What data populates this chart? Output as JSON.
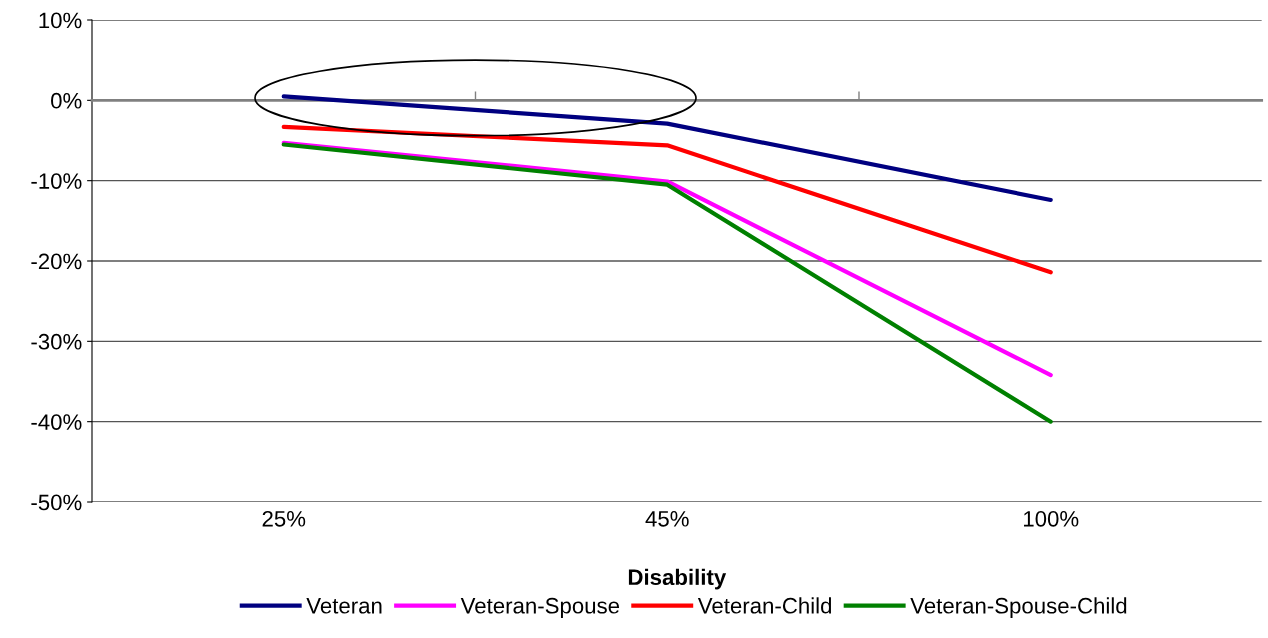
{
  "chart_data": {
    "type": "line",
    "xlabel": "Disability",
    "categories": [
      "25%",
      "45%",
      "100%"
    ],
    "series": [
      {
        "name": "Veteran",
        "color": "#000080",
        "values": [
          0.5,
          -2.9,
          -12.4
        ]
      },
      {
        "name": "Veteran-Spouse",
        "color": "#ff00ff",
        "values": [
          -5.3,
          -10.1,
          -34.2
        ]
      },
      {
        "name": "Veteran-Child",
        "color": "#ff0000",
        "values": [
          -3.3,
          -5.6,
          -21.4
        ]
      },
      {
        "name": "Veteran-Spouse-Child",
        "color": "#008000",
        "values": [
          -5.5,
          -10.5,
          -40.0
        ]
      }
    ],
    "ylim": [
      -50,
      10
    ],
    "yticks": [
      {
        "value": -50,
        "label": "-50%"
      },
      {
        "value": -40,
        "label": "-40%"
      },
      {
        "value": -30,
        "label": "-30%"
      },
      {
        "value": -20,
        "label": "-20%"
      },
      {
        "value": -10,
        "label": "-10%"
      },
      {
        "value": 0,
        "label": "0%"
      },
      {
        "value": 10,
        "label": "10%"
      }
    ],
    "grid": "y",
    "legend": "bottom",
    "marker": "none",
    "line_style": "solid"
  }
}
